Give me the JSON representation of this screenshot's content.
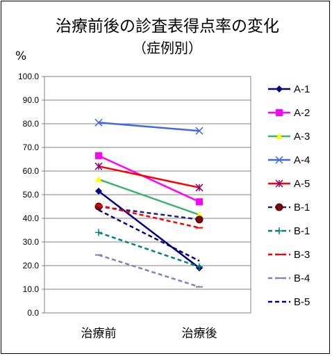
{
  "chart_data": {
    "type": "line",
    "title": "治療前後の診査表得点率の変化",
    "subtitle": "（症例別）",
    "ylabel": "%",
    "xlabel": "",
    "categories": [
      "治療前",
      "治療後"
    ],
    "ylim": [
      0,
      100
    ],
    "ytick_step": 10,
    "ytick_labels": [
      "0.0",
      "10.0",
      "20.0",
      "30.0",
      "40.0",
      "50.0",
      "60.0",
      "70.0",
      "80.0",
      "90.0",
      "100.0"
    ],
    "grid": true,
    "legend_position": "right",
    "series": [
      {
        "name": "A-1",
        "values": [
          51.5,
          19.0
        ],
        "color": "#000080",
        "dash": "",
        "marker": "diamond"
      },
      {
        "name": "A-2",
        "values": [
          66.5,
          47.0
        ],
        "color": "#FF00FF",
        "dash": "",
        "marker": "square"
      },
      {
        "name": "A-3",
        "values": [
          56.5,
          41.5
        ],
        "color": "#3CB371",
        "dash": "",
        "marker": "triangle"
      },
      {
        "name": "A-4",
        "values": [
          80.5,
          77.0
        ],
        "color": "#4169E1",
        "dash": "",
        "marker": "x"
      },
      {
        "name": "A-5",
        "values": [
          62.0,
          53.0
        ],
        "color": "#FF0000",
        "dash": "",
        "marker": "star"
      },
      {
        "name": "B-1",
        "values": [
          45.0,
          39.5
        ],
        "color": "#1E1E8C",
        "dash": "6,4",
        "marker": "circle"
      },
      {
        "name": "B-1",
        "values": [
          34.0,
          19.5
        ],
        "color": "#008080",
        "dash": "6,4",
        "marker": "plus"
      },
      {
        "name": "B-3",
        "values": [
          45.5,
          36.0
        ],
        "color": "#FF0000",
        "dash": "6,4",
        "marker": "dash"
      },
      {
        "name": "B-4",
        "values": [
          24.5,
          11.0
        ],
        "color": "#8080C0",
        "dash": "6,4",
        "marker": "dash"
      },
      {
        "name": "B-5",
        "values": [
          43.5,
          22.0
        ],
        "color": "#000080",
        "dash": "6,4",
        "marker": "none"
      }
    ]
  }
}
